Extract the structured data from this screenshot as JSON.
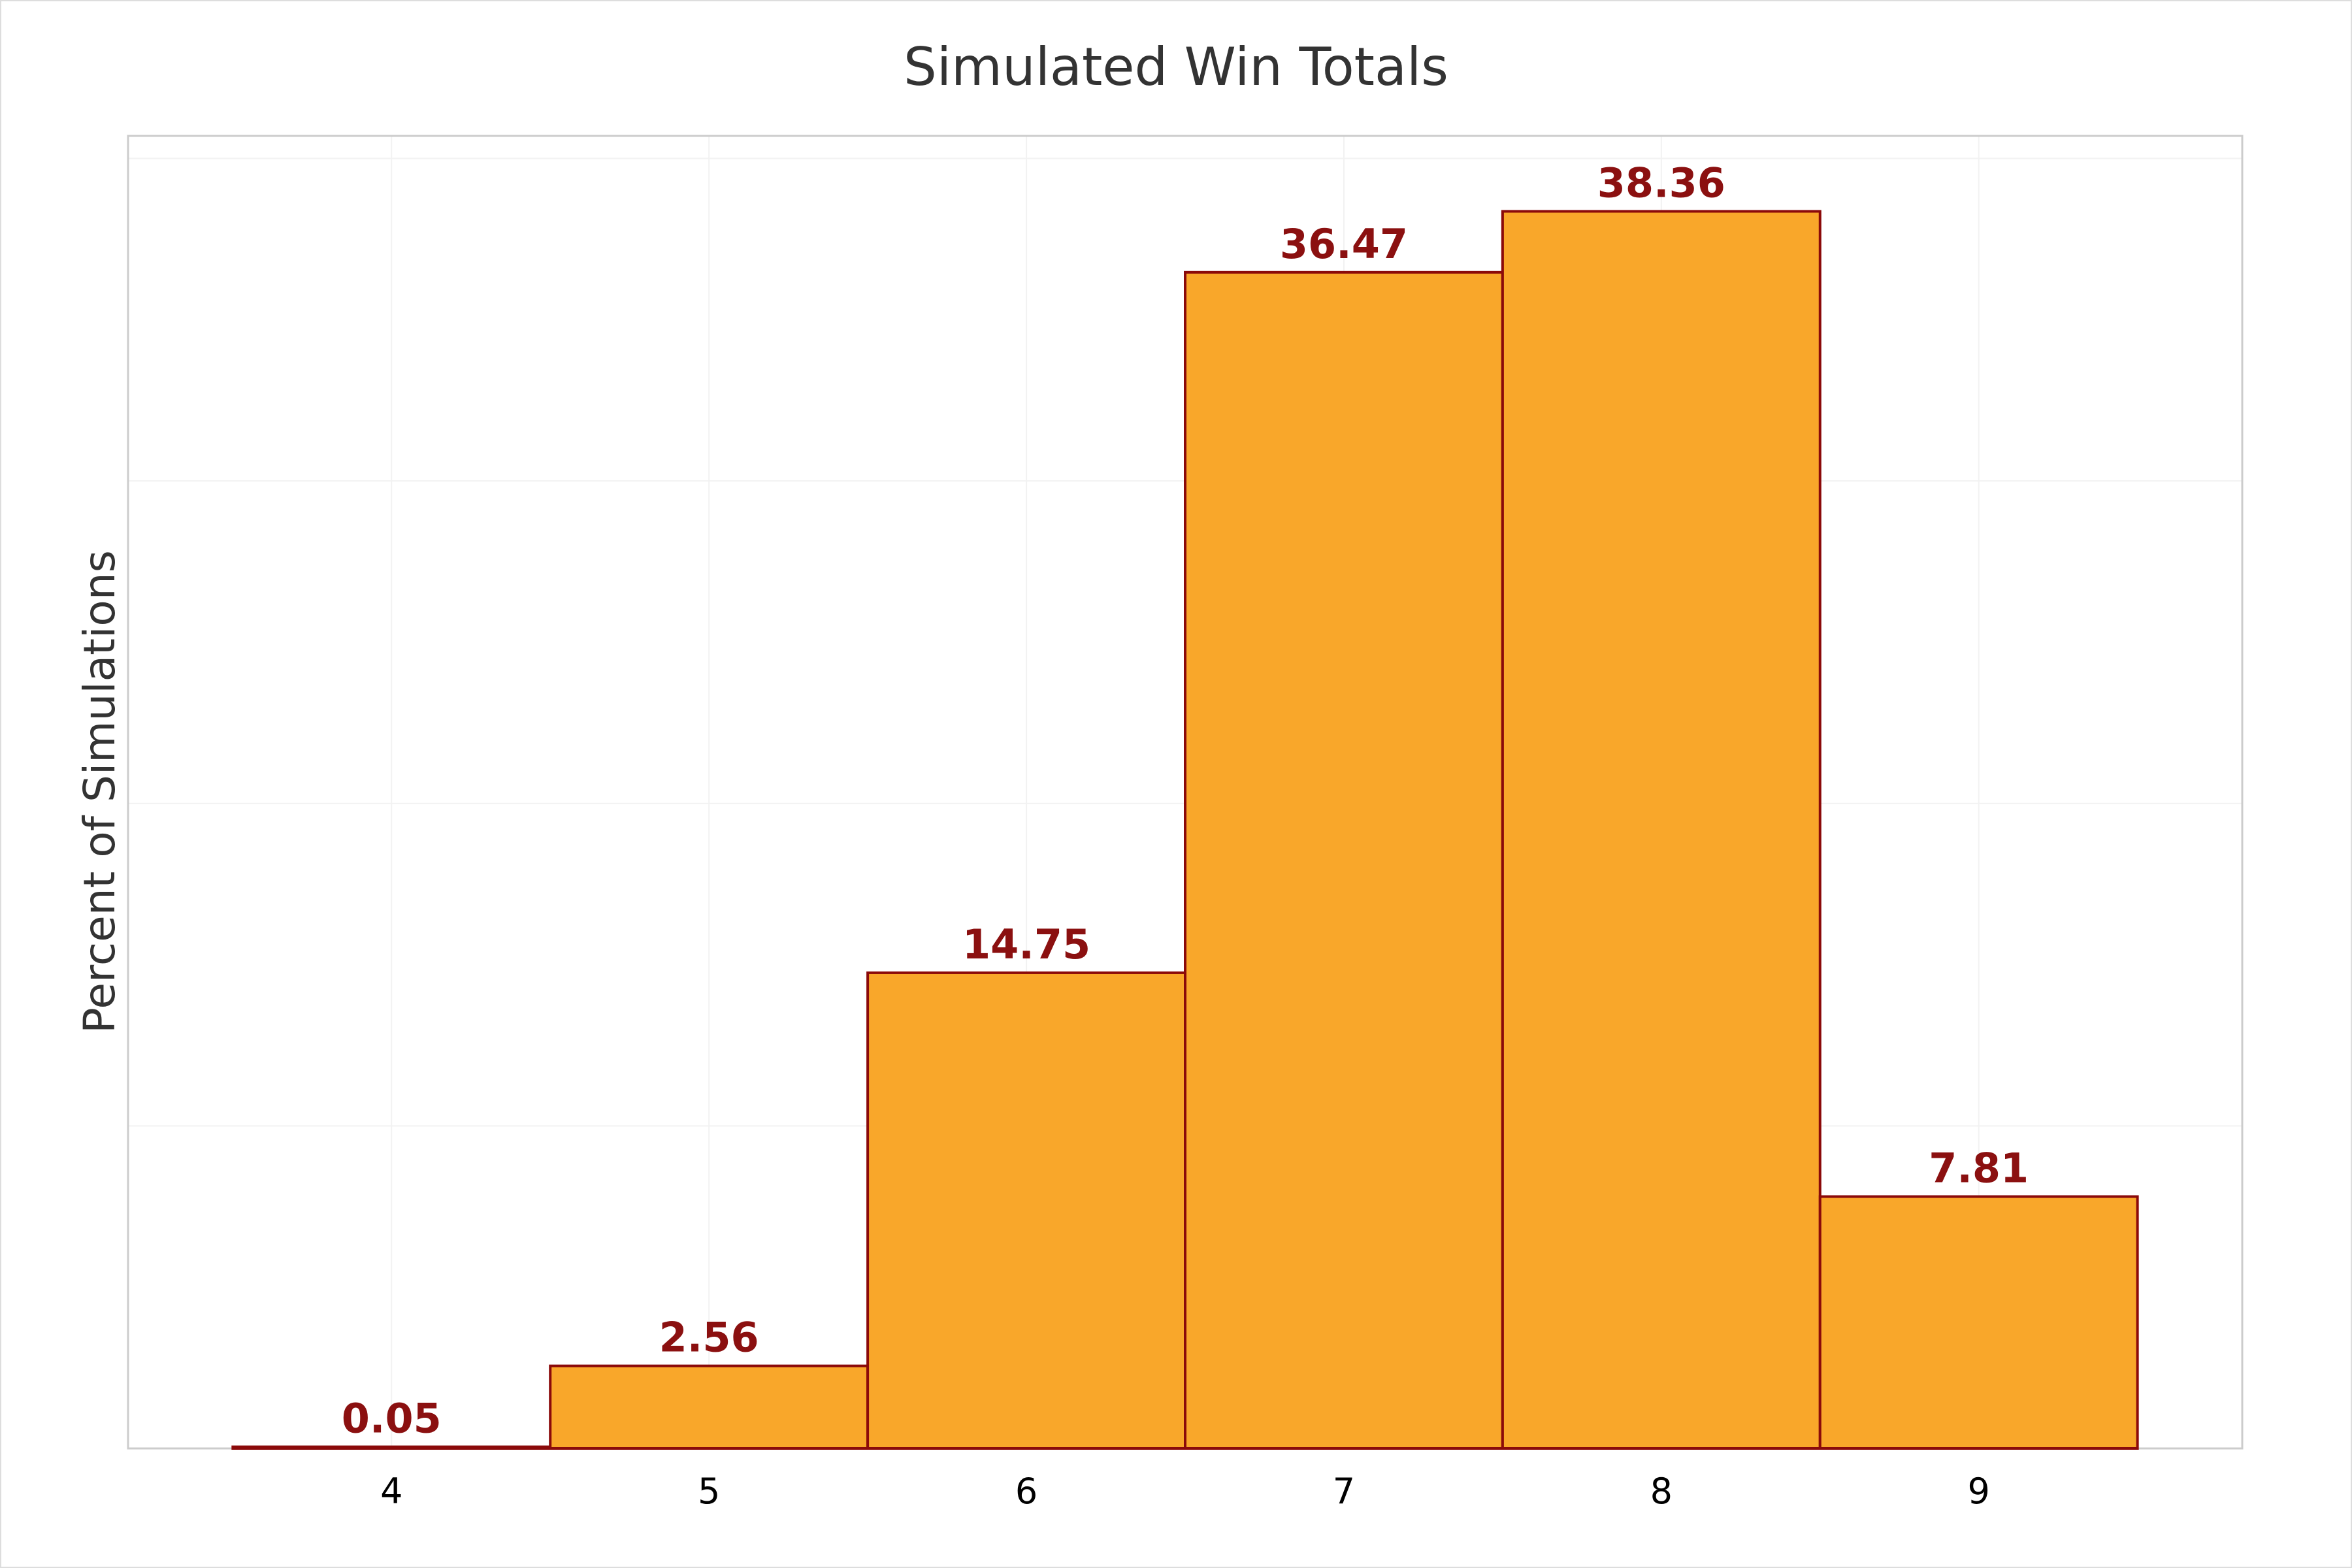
{
  "chart_data": {
    "type": "bar",
    "title": "Simulated Win Totals",
    "xlabel": "",
    "ylabel": "Percent of Simulations",
    "categories": [
      "4",
      "5",
      "6",
      "7",
      "8",
      "9"
    ],
    "x": [
      4,
      5,
      6,
      7,
      8,
      9
    ],
    "values": [
      0.05,
      2.56,
      14.75,
      36.47,
      38.36,
      7.81
    ],
    "data_labels": [
      "0.05",
      "2.56",
      "14.75",
      "36.47",
      "38.36",
      "7.81"
    ],
    "xlim": [
      3.17,
      9.83
    ],
    "ylim": [
      0,
      40.7
    ],
    "y_tick_labels_shown": false,
    "grid": true,
    "legend": "none",
    "colors": {
      "bar_fill": "#F9A72A",
      "bar_edge": "#8B0A0A",
      "data_label": "#8B1010",
      "grid": "#F2F2F2",
      "frame": "#CCCCCC",
      "title": "#333333",
      "tick": "#000000"
    }
  }
}
